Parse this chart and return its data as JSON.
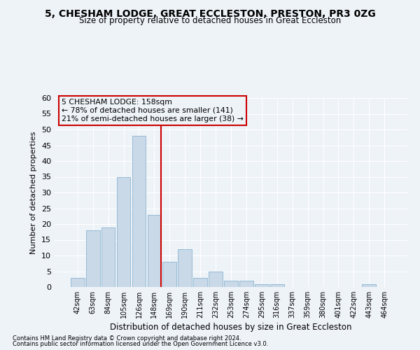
{
  "title": "5, CHESHAM LODGE, GREAT ECCLESTON, PRESTON, PR3 0ZG",
  "subtitle": "Size of property relative to detached houses in Great Eccleston",
  "xlabel": "Distribution of detached houses by size in Great Eccleston",
  "ylabel": "Number of detached properties",
  "bar_color": "#c9d9e8",
  "bar_edgecolor": "#8ab4d0",
  "categories": [
    "42sqm",
    "63sqm",
    "84sqm",
    "105sqm",
    "126sqm",
    "148sqm",
    "169sqm",
    "190sqm",
    "211sqm",
    "232sqm",
    "253sqm",
    "274sqm",
    "295sqm",
    "316sqm",
    "337sqm",
    "359sqm",
    "380sqm",
    "401sqm",
    "422sqm",
    "443sqm",
    "464sqm"
  ],
  "values": [
    3,
    18,
    19,
    35,
    48,
    23,
    8,
    12,
    3,
    5,
    2,
    2,
    1,
    1,
    0,
    0,
    0,
    0,
    0,
    1,
    0
  ],
  "ylim": [
    0,
    60
  ],
  "yticks": [
    0,
    5,
    10,
    15,
    20,
    25,
    30,
    35,
    40,
    45,
    50,
    55,
    60
  ],
  "vline_index": 5,
  "vline_color": "#cc0000",
  "annotation_text": "5 CHESHAM LODGE: 158sqm\n← 78% of detached houses are smaller (141)\n21% of semi-detached houses are larger (38) →",
  "annotation_box_color": "#cc0000",
  "footer_line1": "Contains HM Land Registry data © Crown copyright and database right 2024.",
  "footer_line2": "Contains public sector information licensed under the Open Government Licence v3.0.",
  "background_color": "#eef3f8",
  "grid_color": "#ffffff"
}
